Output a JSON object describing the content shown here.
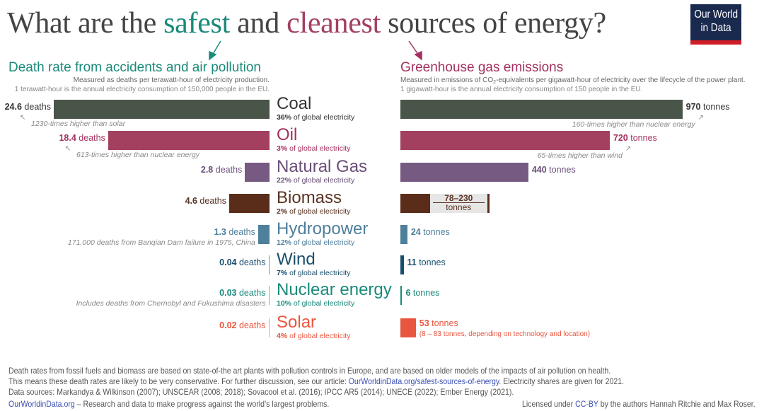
{
  "title": {
    "part1": "What are the ",
    "safest": "safest",
    "part2": " and ",
    "cleanest": "cleanest",
    "part3": " sources of energy?"
  },
  "logo": {
    "line1": "Our World",
    "line2": "in Data"
  },
  "colors": {
    "safest": "#1a8a7a",
    "cleanest": "#a3405f",
    "logo_bg": "#1a2a4f",
    "logo_accent": "#cf1e27"
  },
  "left": {
    "title": "Death rate from accidents and air pollution",
    "subtitle": "Measured as deaths per terawatt-hour of electricity production.",
    "subtitle2": "1 terawatt-hour is the annual electricity consumption of 150,000 people in the EU.",
    "unit": " deaths"
  },
  "right": {
    "title": "Greenhouse gas emissions",
    "subtitle_a": "Measured in emissions of CO",
    "subtitle_sub": "2",
    "subtitle_b": "-equivalents per gigawatt-hour of electricity over the lifecycle of the power plant.",
    "subtitle2": "1 gigawatt-hour is the annual electricity consumption of 150 people in the EU.",
    "unit": " tonnes"
  },
  "chart_data": {
    "type": "bar",
    "categories": [
      "Coal",
      "Oil",
      "Natural Gas",
      "Biomass",
      "Hydropower",
      "Wind",
      "Nuclear energy",
      "Solar"
    ],
    "series": [
      {
        "name": "Death rate from accidents and air pollution",
        "unit": "deaths per TWh",
        "values": [
          24.6,
          18.4,
          2.8,
          4.6,
          1.3,
          0.04,
          0.03,
          0.02
        ]
      },
      {
        "name": "Greenhouse gas emissions",
        "unit": "tonnes CO2-eq per GWh",
        "values": [
          970,
          720,
          440,
          [
            78,
            230
          ],
          24,
          11,
          6,
          53
        ]
      }
    ]
  },
  "rows": [
    {
      "name": "Coal",
      "share_pct": "36%",
      "share_text": " of global electricity",
      "deaths": "24.6",
      "ghg": "970",
      "color": "#4a5549",
      "label_color": "#333",
      "death_note": "1230-times higher than solar",
      "ghg_note": "160-times higher than nuclear energy"
    },
    {
      "name": "Oil",
      "share_pct": "3%",
      "share_text": " of global electricity",
      "deaths": "18.4",
      "ghg": "720",
      "color": "#a3405f",
      "label_color": "#a3305f",
      "death_note": "613-times higher than nuclear energy",
      "ghg_note": "65-times higher than wind"
    },
    {
      "name": "Natural Gas",
      "share_pct": "22%",
      "share_text": " of global electricity",
      "deaths": "2.8",
      "ghg": "440",
      "color": "#765a82",
      "label_color": "#6a4e78"
    },
    {
      "name": "Biomass",
      "share_pct": "2%",
      "share_text": " of global electricity",
      "deaths": "4.6",
      "ghg_range": "78–230",
      "ghg_range_unit": "tonnes",
      "color": "#5a2d1a",
      "label_color": "#5a3322"
    },
    {
      "name": "Hydropower",
      "share_pct": "12%",
      "share_text": " of global electricity",
      "deaths": "1.3",
      "ghg": "24",
      "color": "#4e7f9b",
      "label_color": "#4e7f9b",
      "death_note": "171,000 deaths from Banqian Dam failure in 1975, China"
    },
    {
      "name": "Wind",
      "share_pct": "7%",
      "share_text": " of global electricity",
      "deaths": "0.04",
      "ghg": "11",
      "color": "#1a4e6e",
      "label_color": "#1a4e6e"
    },
    {
      "name": "Nuclear energy",
      "share_pct": "10%",
      "share_text": " of global electricity",
      "deaths": "0.03",
      "ghg": "6",
      "color": "#1a8a7a",
      "label_color": "#1a8a7a",
      "death_note": "Includes deaths from Chernobyl and Fukushima disasters"
    },
    {
      "name": "Solar",
      "share_pct": "4%",
      "share_text": " of global electricity",
      "deaths": "0.02",
      "ghg": "53",
      "color": "#e9563f",
      "label_color": "#e9563f",
      "ghg_note2": "(8 – 83 tonnes, depending on technology and location)"
    }
  ],
  "footer": {
    "line1": "Death rates from fossil fuels and biomass are based on state-of-the art plants with pollution controls in Europe, and are based on older models of the impacts of air pollution on health.",
    "line2a": "This means these death rates are likely to be very conservative. For further discussion, see our article: ",
    "line2link": "OurWorldinData.org/safest-sources-of-energy",
    "line2b": ". Electricity shares are given for 2021.",
    "line3": "Data sources: Markandya & Wilkinson (2007); UNSCEAR (2008; 2018); Sovacool et al. (2016); IPCC AR5 (2014); UNECE (2022); Ember Energy (2021).",
    "site": "OurWorldinData.org",
    "tagline": " – Research and data to make progress against the world’s largest problems.",
    "license_a": "Licensed under ",
    "license_link": "CC-BY",
    "license_b": " by the authors Hannah Ritchie and Max Roser."
  }
}
